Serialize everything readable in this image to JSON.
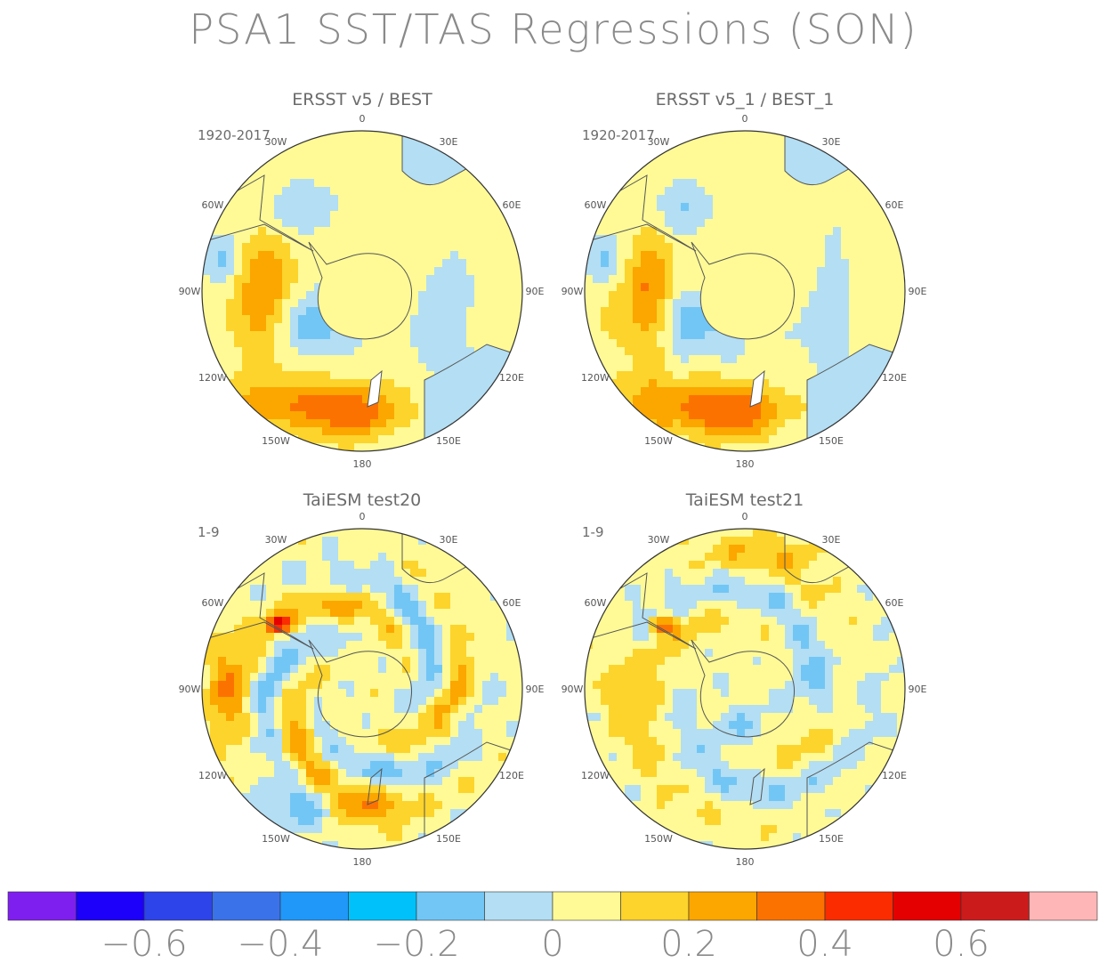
{
  "title": "PSA1 SST/TAS Regressions (SON)",
  "panels": [
    {
      "title": "ERSST v5 / BEST",
      "period": "1920-2017",
      "style": "obs"
    },
    {
      "title": "ERSST v5_1 / BEST_1",
      "period": "1920-2017",
      "style": "obs"
    },
    {
      "title": "TaiESM test20",
      "period": "1-9",
      "style": "model"
    },
    {
      "title": "TaiESM test21",
      "period": "1-9",
      "style": "model"
    }
  ],
  "longitude_labels": [
    "0",
    "30E",
    "60E",
    "90E",
    "120E",
    "150E",
    "180",
    "150W",
    "120W",
    "90W",
    "60W",
    "30W"
  ],
  "colorbar": {
    "colors": [
      "#7f1fef",
      "#1c00fa",
      "#2d44ea",
      "#3a72ea",
      "#1f98fa",
      "#00c1fa",
      "#72c6f5",
      "#b3def3",
      "#fffa96",
      "#fdd42b",
      "#fca600",
      "#fc7200",
      "#fa2c00",
      "#e40000",
      "#cc1b1b",
      "#ffb6b6"
    ],
    "labels": [
      "-0.6",
      "-0.4",
      "-0.2",
      "0",
      "0.2",
      "0.4",
      "0.6"
    ]
  }
}
